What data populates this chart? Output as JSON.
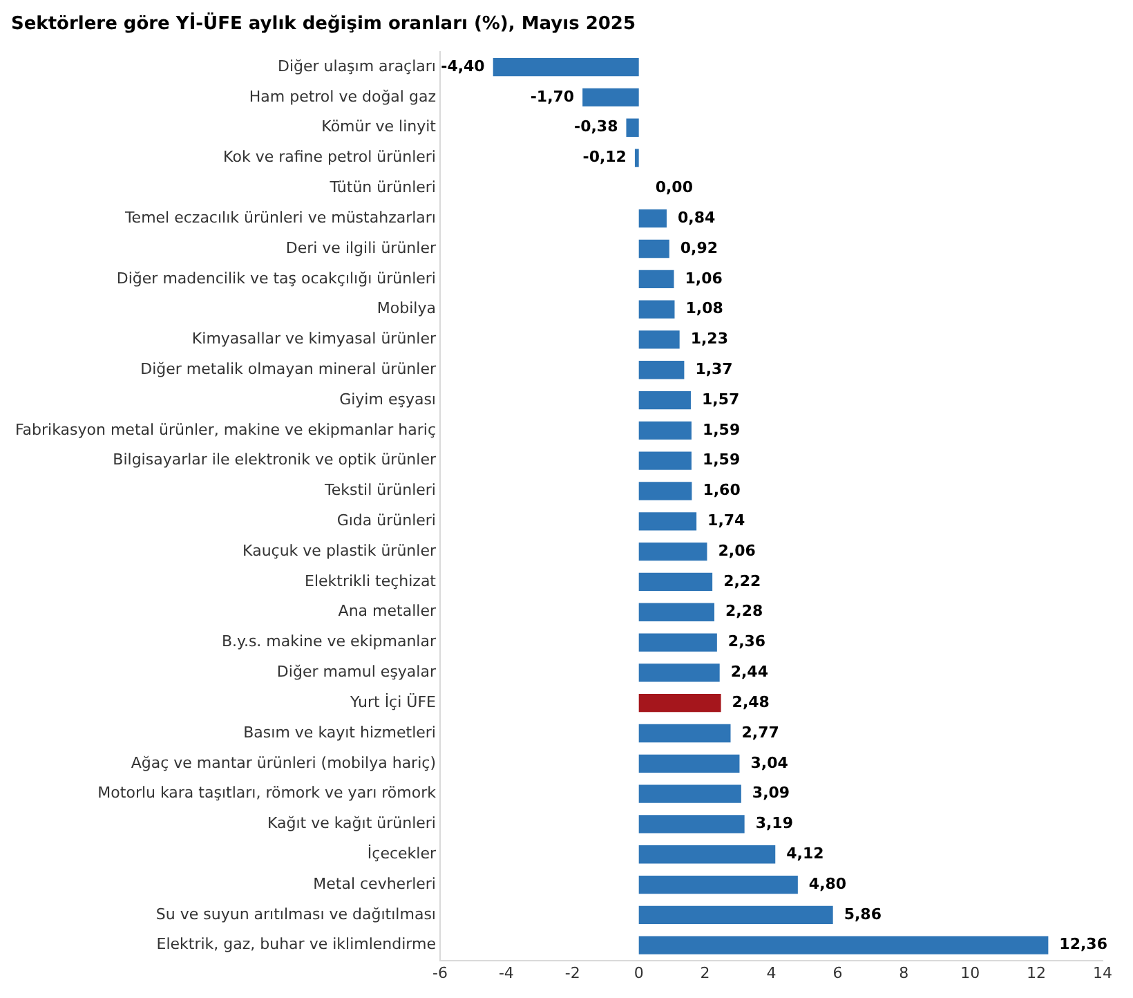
{
  "chart_data": {
    "type": "bar",
    "orientation": "horizontal",
    "title": "Sektörlere göre Yİ-ÜFE aylık değişim oranları (%), Mayıs 2025",
    "categories": [
      "Diğer ulaşım araçları",
      "Ham petrol ve doğal gaz",
      "Kömür ve linyit",
      "Kok ve rafine petrol ürünleri",
      "Tütün ürünleri",
      "Temel eczacılık ürünleri ve müstahzarları",
      "Deri ve ilgili ürünler",
      "Diğer madencilik ve taş ocakçılığı ürünleri",
      "Mobilya",
      "Kimyasallar ve kimyasal ürünler",
      "Diğer metalik olmayan mineral ürünler",
      "Giyim eşyası",
      "Fabrikasyon metal ürünler, makine ve ekipmanlar hariç",
      "Bilgisayarlar ile elektronik ve optik ürünler",
      "Tekstil ürünleri",
      "Gıda ürünleri",
      "Kauçuk ve plastik ürünler",
      "Elektrikli teçhizat",
      "Ana metaller",
      "B.y.s. makine ve ekipmanlar",
      "Diğer mamul eşyalar",
      "Yurt İçi ÜFE",
      "Basım ve kayıt hizmetleri",
      "Ağaç ve mantar ürünleri (mobilya hariç)",
      "Motorlu kara taşıtları, römork ve yarı römork",
      "Kağıt ve kağıt ürünleri",
      "İçecekler",
      "Metal cevherleri",
      "Su ve suyun arıtılması ve dağıtılması",
      "Elektrik, gaz, buhar ve iklimlendirme"
    ],
    "values": [
      -4.4,
      -1.7,
      -0.38,
      -0.12,
      0.0,
      0.84,
      0.92,
      1.06,
      1.08,
      1.23,
      1.37,
      1.57,
      1.59,
      1.59,
      1.6,
      1.74,
      2.06,
      2.22,
      2.28,
      2.36,
      2.44,
      2.48,
      2.77,
      3.04,
      3.09,
      3.19,
      4.12,
      4.8,
      5.86,
      12.36
    ],
    "value_labels": [
      "-4,40",
      "-1,70",
      "-0,38",
      "-0,12",
      "0,00",
      "0,84",
      "0,92",
      "1,06",
      "1,08",
      "1,23",
      "1,37",
      "1,57",
      "1,59",
      "1,59",
      "1,60",
      "1,74",
      "2,06",
      "2,22",
      "2,28",
      "2,36",
      "2,44",
      "2,48",
      "2,77",
      "3,04",
      "3,09",
      "3,19",
      "4,12",
      "4,80",
      "5,86",
      "12,36"
    ],
    "colors": [
      "#2e75b6",
      "#2e75b6",
      "#2e75b6",
      "#2e75b6",
      "#2e75b6",
      "#2e75b6",
      "#2e75b6",
      "#2e75b6",
      "#2e75b6",
      "#2e75b6",
      "#2e75b6",
      "#2e75b6",
      "#2e75b6",
      "#2e75b6",
      "#2e75b6",
      "#2e75b6",
      "#2e75b6",
      "#2e75b6",
      "#2e75b6",
      "#2e75b6",
      "#2e75b6",
      "#a5161c",
      "#2e75b6",
      "#2e75b6",
      "#2e75b6",
      "#2e75b6",
      "#2e75b6",
      "#2e75b6",
      "#2e75b6",
      "#2e75b6"
    ],
    "xlim": [
      -6,
      14
    ],
    "xticks": [
      -6,
      -4,
      -2,
      0,
      2,
      4,
      6,
      8,
      10,
      12,
      14
    ],
    "grid": false,
    "legend": false
  }
}
